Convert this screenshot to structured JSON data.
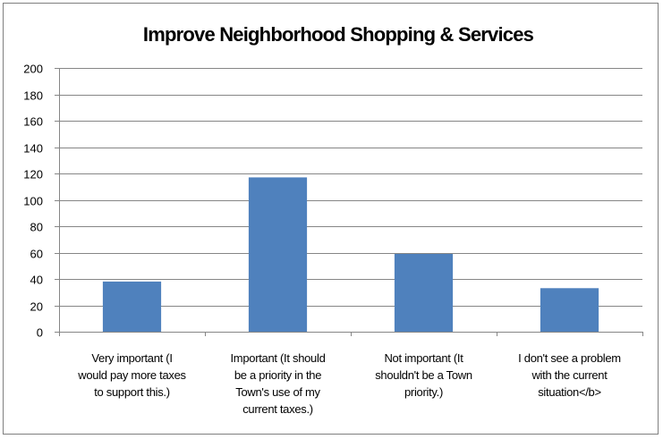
{
  "chart_data": {
    "type": "bar",
    "title": "Improve Neighborhood Shopping & Services",
    "categories": [
      [
        "Very important  (I",
        "would pay more taxes",
        "to support this.)"
      ],
      [
        "Important (It should",
        "be a priority in the",
        "Town's use of my",
        "current taxes.)"
      ],
      [
        "Not important  (It",
        "shouldn't be a Town",
        "priority.)"
      ],
      [
        "I don't see a problem",
        "with the current",
        "situation</b>"
      ]
    ],
    "values": [
      38,
      117,
      59,
      33
    ],
    "ylim": [
      0,
      200
    ],
    "yticks": [
      0,
      20,
      40,
      60,
      80,
      100,
      120,
      140,
      160,
      180,
      200
    ],
    "xlabel": "",
    "ylabel": "",
    "grid": true,
    "legend": "none",
    "bar_color": "#4f81bd"
  }
}
